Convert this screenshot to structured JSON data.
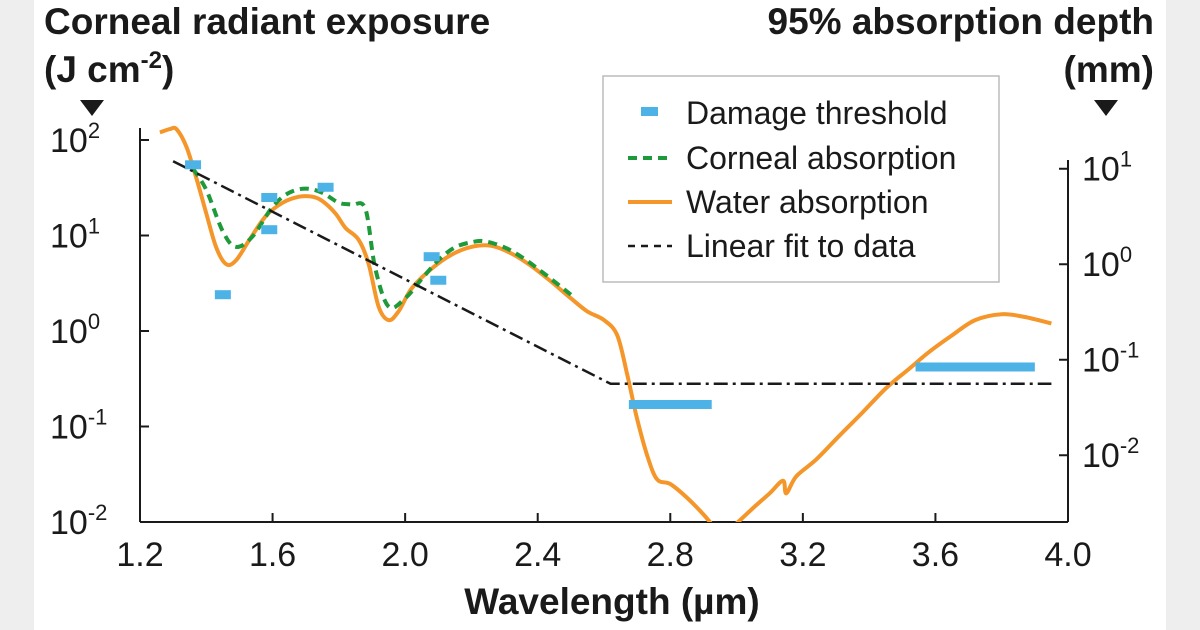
{
  "colors": {
    "damage": "#4db3e6",
    "corneal": "#1f9a3a",
    "water": "#f5962a",
    "fit": "#1a1a1a"
  },
  "chart_data": {
    "type": "line",
    "title_left_line1": "Corneal radiant exposure",
    "title_left_line2": "(J cm",
    "title_left_sup": "-2",
    "title_left_end": ")",
    "title_right_line1": "95% absorption depth",
    "title_right_line2": "(mm)",
    "xlabel": "Wavelength (µm)",
    "xlim": [
      1.2,
      4.0
    ],
    "x_ticks": [
      {
        "value": 1.2,
        "label": "1.2"
      },
      {
        "value": 1.6,
        "label": "1.6"
      },
      {
        "value": 2.0,
        "label": "2.0"
      },
      {
        "value": 2.4,
        "label": "2.4"
      },
      {
        "value": 2.8,
        "label": "2.8"
      },
      {
        "value": 3.2,
        "label": "3.2"
      },
      {
        "value": 3.6,
        "label": "3.6"
      },
      {
        "value": 4.0,
        "label": "4.0"
      }
    ],
    "y_left": {
      "scale": "log",
      "lim": [
        0.01,
        100
      ],
      "ticks": [
        {
          "value": 100,
          "base": "10",
          "exp": "2"
        },
        {
          "value": 10,
          "base": "10",
          "exp": "1"
        },
        {
          "value": 1,
          "base": "10",
          "exp": "0"
        },
        {
          "value": 0.1,
          "base": "10",
          "exp": "-1"
        },
        {
          "value": 0.01,
          "base": "10",
          "exp": "-2"
        }
      ]
    },
    "y_right": {
      "scale": "log",
      "ticks": [
        {
          "value": 10,
          "left_equiv": 50,
          "base": "10",
          "exp": "1"
        },
        {
          "value": 1,
          "left_equiv": 5,
          "base": "10",
          "exp": "0"
        },
        {
          "value": 0.1,
          "left_equiv": 0.5,
          "base": "10",
          "exp": "-1"
        },
        {
          "value": 0.01,
          "left_equiv": 0.05,
          "base": "10",
          "exp": "-2"
        }
      ]
    },
    "legend": {
      "position": "top-right",
      "entries": [
        {
          "key": "damage",
          "label": "Damage threshold"
        },
        {
          "key": "corneal",
          "label": "Corneal absorption"
        },
        {
          "key": "water",
          "label": "Water absorption"
        },
        {
          "key": "fit",
          "label": "Linear fit to data"
        }
      ]
    },
    "series": {
      "damage": [
        {
          "x": 1.36,
          "y": 55
        },
        {
          "x": 1.45,
          "y": 2.4
        },
        {
          "x": 1.59,
          "y": 25
        },
        {
          "x": 1.59,
          "y": 11.5
        },
        {
          "x": 1.76,
          "y": 32
        },
        {
          "x": 2.08,
          "y": 6
        },
        {
          "x": 2.1,
          "y": 3.4
        },
        {
          "x": 2.8,
          "y": 0.17,
          "width": 0.25
        },
        {
          "x": 3.72,
          "y": 0.42,
          "width": 0.36
        }
      ],
      "corneal": {
        "x": [
          1.36,
          1.4,
          1.45,
          1.49,
          1.54,
          1.6,
          1.65,
          1.7,
          1.75,
          1.8,
          1.84,
          1.88,
          1.91,
          1.95,
          2.0,
          2.05,
          2.1,
          2.15,
          2.2,
          2.24,
          2.3,
          2.35,
          2.4,
          2.45,
          2.5
        ],
        "y": [
          50,
          30,
          11,
          7.6,
          9.8,
          20,
          28,
          31,
          28,
          22,
          21,
          19,
          4.5,
          1.8,
          2.2,
          3.5,
          5.5,
          7.5,
          8.5,
          8.7,
          7.5,
          6.0,
          4.5,
          3.3,
          2.4
        ]
      },
      "water": {
        "x": [
          1.26,
          1.29,
          1.31,
          1.34,
          1.37,
          1.4,
          1.43,
          1.46,
          1.49,
          1.53,
          1.58,
          1.63,
          1.68,
          1.72,
          1.75,
          1.79,
          1.82,
          1.86,
          1.89,
          1.92,
          1.95,
          1.98,
          2.02,
          2.08,
          2.14,
          2.2,
          2.26,
          2.32,
          2.38,
          2.44,
          2.5,
          2.55,
          2.6,
          2.64,
          2.67,
          2.7,
          2.73,
          2.76,
          2.8,
          2.85,
          2.9,
          2.93
        ],
        "y": [
          120,
          130,
          130,
          85,
          40,
          17,
          7.5,
          5.0,
          5.5,
          9,
          16,
          22,
          25.5,
          25.5,
          23,
          17,
          12,
          9,
          5,
          1.8,
          1.3,
          1.6,
          2.8,
          4.5,
          6.3,
          7.6,
          7.8,
          6.5,
          4.8,
          3.3,
          2.2,
          1.6,
          1.3,
          0.9,
          0.35,
          0.12,
          0.05,
          0.028,
          0.025,
          0.018,
          0.012,
          0.009
        ]
      },
      "water_segment2": {
        "x": [
          2.99,
          3.05,
          3.1,
          3.14,
          3.15,
          3.18,
          3.24,
          3.31,
          3.38,
          3.45,
          3.52,
          3.58,
          3.65,
          3.72,
          3.8,
          3.87,
          3.95
        ],
        "y": [
          0.009,
          0.014,
          0.02,
          0.027,
          0.02,
          0.03,
          0.045,
          0.08,
          0.14,
          0.25,
          0.4,
          0.6,
          0.9,
          1.3,
          1.5,
          1.4,
          1.2
        ]
      },
      "fit": {
        "x": [
          1.3,
          2.62,
          3.95
        ],
        "y": [
          60,
          0.28,
          0.28
        ]
      }
    }
  }
}
